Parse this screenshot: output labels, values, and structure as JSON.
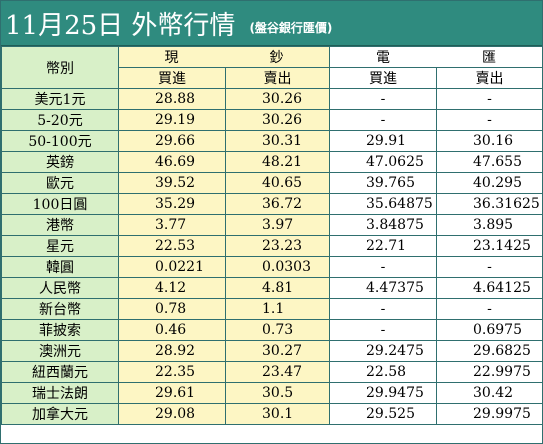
{
  "title": {
    "main": "11月25日 外幣行情",
    "sub": "(盤谷銀行匯價)"
  },
  "colors": {
    "title_bg": "#2f8b7f",
    "name_col_bg": "#d8f0c8",
    "cash_col_bg": "#fdf6c4",
    "wire_col_bg": "#ffffff",
    "border": "#2f6f6f"
  },
  "header": {
    "currency_col": "幣別",
    "cash_group": [
      "現",
      "鈔"
    ],
    "wire_group": [
      "電",
      "匯"
    ],
    "buy": "買進",
    "sell": "賣出"
  },
  "rows": [
    {
      "name": "美元1元",
      "cash_buy": "28.88",
      "cash_sell": "30.26",
      "wire_buy": "-",
      "wire_sell": "-"
    },
    {
      "name": "5-20元",
      "cash_buy": "29.19",
      "cash_sell": "30.26",
      "wire_buy": "-",
      "wire_sell": "-"
    },
    {
      "name": "50-100元",
      "cash_buy": "29.66",
      "cash_sell": "30.31",
      "wire_buy": "29.91",
      "wire_sell": "30.16"
    },
    {
      "name": "英鎊",
      "cash_buy": "46.69",
      "cash_sell": "48.21",
      "wire_buy": "47.0625",
      "wire_sell": "47.655"
    },
    {
      "name": "歐元",
      "cash_buy": "39.52",
      "cash_sell": "40.65",
      "wire_buy": "39.765",
      "wire_sell": "40.295"
    },
    {
      "name": "100日圓",
      "cash_buy": "35.29",
      "cash_sell": "36.72",
      "wire_buy": "35.64875",
      "wire_sell": "36.31625"
    },
    {
      "name": "港幣",
      "cash_buy": "3.77",
      "cash_sell": "3.97",
      "wire_buy": "3.84875",
      "wire_sell": "3.895"
    },
    {
      "name": "星元",
      "cash_buy": "22.53",
      "cash_sell": "23.23",
      "wire_buy": "22.71",
      "wire_sell": "23.1425"
    },
    {
      "name": "韓圓",
      "cash_buy": "0.0221",
      "cash_sell": "0.0303",
      "wire_buy": "-",
      "wire_sell": "-"
    },
    {
      "name": "人民幣",
      "cash_buy": "4.12",
      "cash_sell": "4.81",
      "wire_buy": "4.47375",
      "wire_sell": "4.64125"
    },
    {
      "name": "新台幣",
      "cash_buy": "0.78",
      "cash_sell": "1.1",
      "wire_buy": "-",
      "wire_sell": "-"
    },
    {
      "name": "菲披索",
      "cash_buy": "0.46",
      "cash_sell": "0.73",
      "wire_buy": "-",
      "wire_sell": "0.6975"
    },
    {
      "name": "澳洲元",
      "cash_buy": "28.92",
      "cash_sell": "30.27",
      "wire_buy": "29.2475",
      "wire_sell": "29.6825"
    },
    {
      "name": "紐西蘭元",
      "cash_buy": "22.35",
      "cash_sell": "23.47",
      "wire_buy": "22.58",
      "wire_sell": "22.9975"
    },
    {
      "name": "瑞士法朗",
      "cash_buy": "29.61",
      "cash_sell": "30.5",
      "wire_buy": "29.9475",
      "wire_sell": "30.42"
    },
    {
      "name": "加拿大元",
      "cash_buy": "29.08",
      "cash_sell": "30.1",
      "wire_buy": "29.525",
      "wire_sell": "29.9975"
    }
  ]
}
